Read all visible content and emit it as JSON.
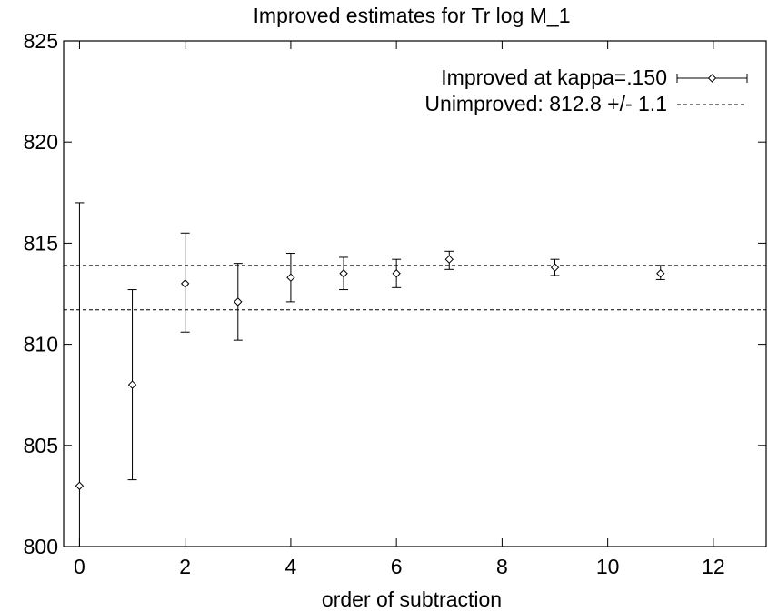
{
  "chart_data": {
    "type": "scatter",
    "title": "Improved estimates for Tr log M_1",
    "xlabel": "order of subtraction",
    "ylabel": "",
    "xlim": [
      -0.3,
      13
    ],
    "ylim": [
      800,
      825
    ],
    "x_ticks": [
      0,
      2,
      4,
      6,
      8,
      10,
      12
    ],
    "y_ticks": [
      800,
      805,
      810,
      815,
      820,
      825
    ],
    "x_tick_labels": [
      "0",
      "2",
      "4",
      "6",
      "8",
      "10",
      "12"
    ],
    "y_tick_labels": [
      "800",
      "805",
      "810",
      "815",
      "820",
      "825"
    ],
    "grid": false,
    "legend_position": "top-right",
    "series": [
      {
        "name": "Improved at kappa=.150",
        "style": "points-with-errorbars",
        "marker": "diamond",
        "points": [
          {
            "x": 0,
            "y": 803.0,
            "err_low": 800.0,
            "err_high": 817.0
          },
          {
            "x": 1,
            "y": 808.0,
            "err_low": 803.3,
            "err_high": 812.7
          },
          {
            "x": 2,
            "y": 813.0,
            "err_low": 810.6,
            "err_high": 815.5
          },
          {
            "x": 3,
            "y": 812.1,
            "err_low": 810.2,
            "err_high": 814.0
          },
          {
            "x": 4,
            "y": 813.3,
            "err_low": 812.1,
            "err_high": 814.5
          },
          {
            "x": 5,
            "y": 813.5,
            "err_low": 812.7,
            "err_high": 814.3
          },
          {
            "x": 6,
            "y": 813.5,
            "err_low": 812.8,
            "err_high": 814.2
          },
          {
            "x": 7,
            "y": 814.2,
            "err_low": 813.7,
            "err_high": 814.6
          },
          {
            "x": 9,
            "y": 813.8,
            "err_low": 813.4,
            "err_high": 814.2
          },
          {
            "x": 11,
            "y": 813.5,
            "err_low": 813.2,
            "err_high": 813.9
          }
        ]
      },
      {
        "name": "Unimproved: 812.8 +/- 1.1",
        "style": "dashed-lines",
        "levels": [
          811.7,
          813.9
        ]
      }
    ]
  }
}
